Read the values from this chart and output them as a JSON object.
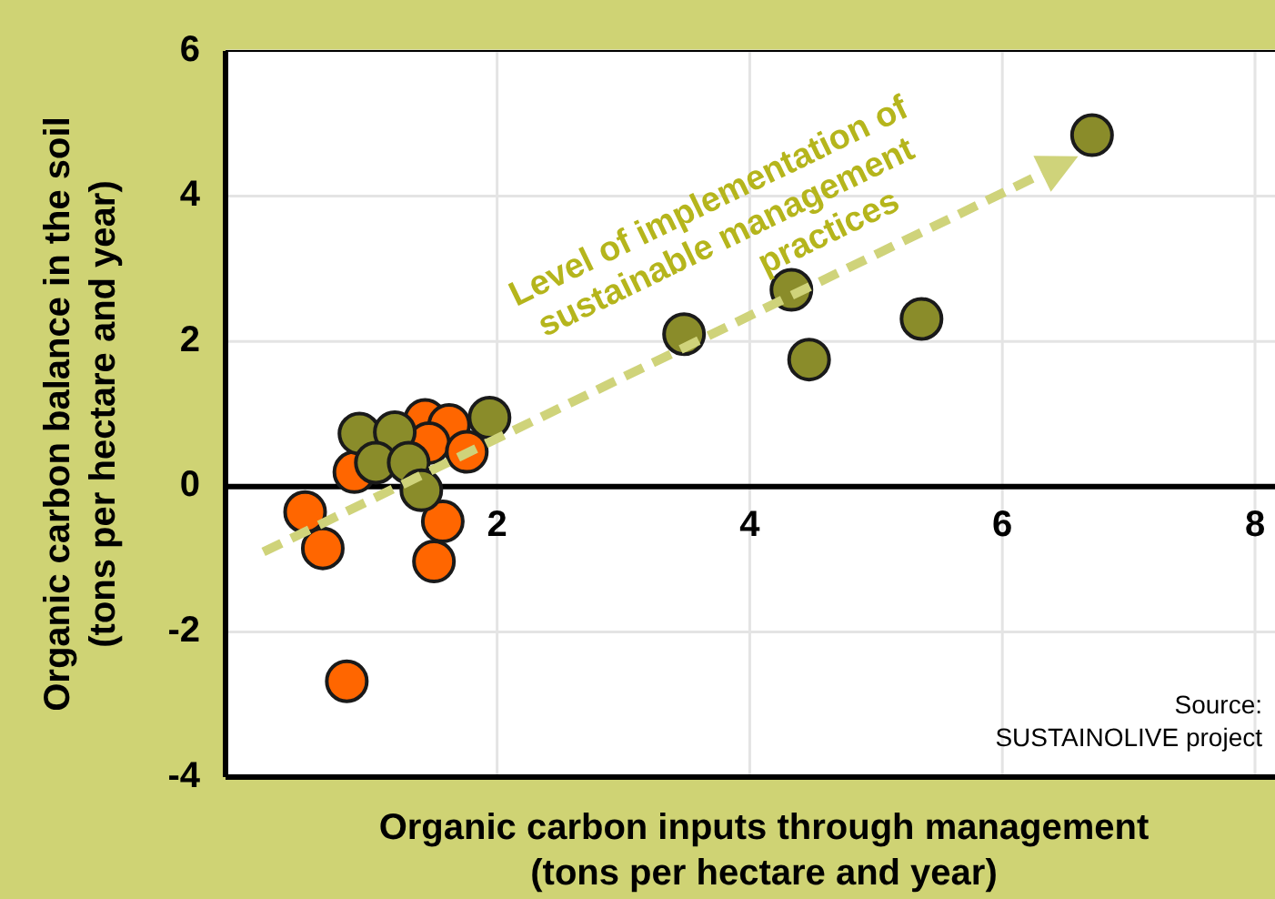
{
  "chart_data": {
    "type": "scatter",
    "xlabel": "Organic carbon inputs through management\n(tons per hectare and year)",
    "ylabel": "Organic carbon balance in the soil\n(tons per hectare and year)",
    "xlim": [
      -0.15,
      8
    ],
    "ylim": [
      -4,
      6
    ],
    "xticks": [
      2,
      4,
      6,
      8
    ],
    "yticks": [
      -4,
      -2,
      0,
      2,
      4,
      6
    ],
    "grid": true,
    "marker": "circle",
    "series": [
      {
        "color": "#ff6600",
        "x": [
          0.48,
          0.62,
          0.81,
          0.87,
          1.43,
          1.62,
          1.46,
          1.76,
          1.57,
          1.5
        ],
        "values": [
          -0.35,
          -0.85,
          -2.68,
          0.2,
          0.92,
          0.85,
          0.6,
          0.48,
          -0.48,
          -1.03
        ]
      },
      {
        "color": "#8a8c2a",
        "x": [
          0.91,
          1.19,
          1.04,
          1.3,
          1.4,
          1.94,
          3.48,
          4.33,
          4.47,
          5.36,
          6.71
        ],
        "values": [
          0.73,
          0.75,
          0.33,
          0.33,
          -0.05,
          0.95,
          2.1,
          2.71,
          1.75,
          2.31,
          4.84
        ]
      }
    ],
    "annotations": [
      "Level of implementation of\nsustainable management\npractices",
      "Source:\nSUSTAINOLIVE project"
    ]
  }
}
